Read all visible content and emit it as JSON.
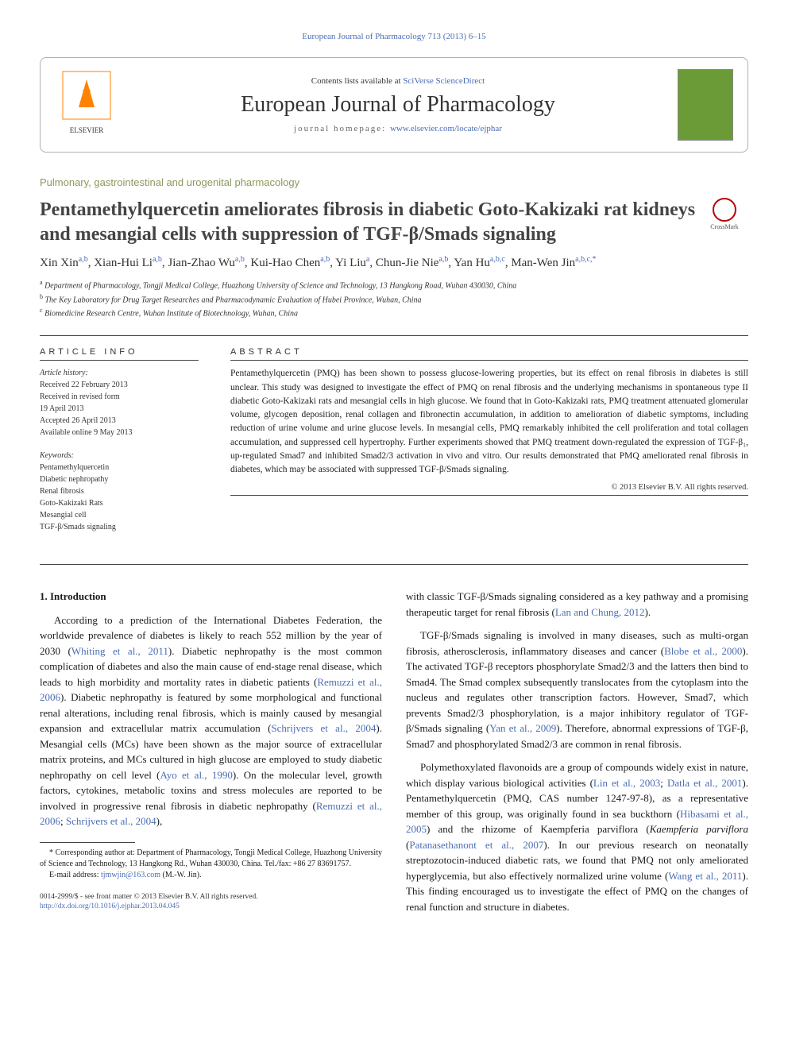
{
  "top_link": "European Journal of Pharmacology 713 (2013) 6–15",
  "header": {
    "contents_prefix": "Contents lists available at ",
    "contents_link": "SciVerse ScienceDirect",
    "journal": "European Journal of Pharmacology",
    "homepage_prefix": "journal homepage: ",
    "homepage_url": "www.elsevier.com/locate/ejphar",
    "publisher": "ELSEVIER"
  },
  "section_heading": "Pulmonary, gastrointestinal and urogenital pharmacology",
  "title": "Pentamethylquercetin ameliorates fibrosis in diabetic Goto-Kakizaki rat kidneys and mesangial cells with suppression of TGF-β/Smads signaling",
  "crossmark": "CrossMark",
  "authors_html": "Xin Xin<sup>a,b</sup>, Xian-Hui Li<sup>a,b</sup>, Jian-Zhao Wu<sup>a,b</sup>, Kui-Hao Chen<sup>a,b</sup>, Yi Liu<sup>a</sup>, Chun-Jie Nie<sup>a,b</sup>, Yan Hu<sup>a,b,c</sup>, Man-Wen Jin<sup>a,b,c,*</sup>",
  "affiliations": [
    {
      "sup": "a",
      "text": "Department of Pharmacology, Tongji Medical College, Huazhong University of Science and Technology, 13 Hangkong Road, Wuhan 430030, China"
    },
    {
      "sup": "b",
      "text": "The Key Laboratory for Drug Target Researches and Pharmacodynamic Evaluation of Hubei Province, Wuhan, China"
    },
    {
      "sup": "c",
      "text": "Biomedicine Research Centre, Wuhan Institute of Biotechnology, Wuhan, China"
    }
  ],
  "article_info": {
    "heading": "ARTICLE INFO",
    "history_label": "Article history:",
    "history": [
      "Received 22 February 2013",
      "Received in revised form",
      "19 April 2013",
      "Accepted 26 April 2013",
      "Available online 9 May 2013"
    ],
    "keywords_label": "Keywords:",
    "keywords": [
      "Pentamethylquercetin",
      "Diabetic nephropathy",
      "Renal fibrosis",
      "Goto-Kakizaki Rats",
      "Mesangial cell",
      "TGF-β/Smads signaling"
    ]
  },
  "abstract": {
    "heading": "ABSTRACT",
    "text": "Pentamethylquercetin (PMQ) has been shown to possess glucose-lowering properties, but its effect on renal fibrosis in diabetes is still unclear. This study was designed to investigate the effect of PMQ on renal fibrosis and the underlying mechanisms in spontaneous type II diabetic Goto-Kakizaki rats and mesangial cells in high glucose. We found that in Goto-Kakizaki rats, PMQ treatment attenuated glomerular volume, glycogen deposition, renal collagen and fibronectin accumulation, in addition to amelioration of diabetic symptoms, including reduction of urine volume and urine glucose levels. In mesangial cells, PMQ remarkably inhibited the cell proliferation and total collagen accumulation, and suppressed cell hypertrophy. Further experiments showed that PMQ treatment down-regulated the expression of TGF-β₁, up-regulated Smad7 and inhibited Smad2/3 activation in vivo and vitro. Our results demonstrated that PMQ ameliorated renal fibrosis in diabetes, which may be associated with suppressed TGF-β/Smads signaling.",
    "copyright": "© 2013 Elsevier B.V. All rights reserved."
  },
  "intro": {
    "heading": "1. Introduction",
    "p1_pre": "According to a prediction of the International Diabetes Federation, the worldwide prevalence of diabetes is likely to reach 552 million by the year of 2030 (",
    "p1_ref1": "Whiting et al., 2011",
    "p1_mid1": "). Diabetic nephropathy is the most common complication of diabetes and also the main cause of end-stage renal disease, which leads to high morbidity and mortality rates in diabetic patients (",
    "p1_ref2": "Remuzzi et al., 2006",
    "p1_mid2": "). Diabetic nephropathy is featured by some morphological and functional renal alterations, including renal fibrosis, which is mainly caused by mesangial expansion and extracellular matrix accumulation (",
    "p1_ref3": "Schrijvers et al., 2004",
    "p1_mid3": "). Mesangial cells (MCs) have been shown as the major source of extracellular matrix proteins, and MCs cultured in high glucose are employed to study diabetic nephropathy on cell level (",
    "p1_ref4": "Ayo et al., 1990",
    "p1_mid4": "). On the molecular level, growth factors, cytokines, metabolic toxins and stress molecules are reported to be involved in progressive renal fibrosis in diabetic nephropathy (",
    "p1_ref5": "Remuzzi et al., 2006",
    "p1_mid5": "; ",
    "p1_ref6": "Schrijvers et al., 2004",
    "p1_end": "),",
    "p2_pre": "with classic TGF-β/Smads signaling considered as a key pathway and a promising therapeutic target for renal fibrosis (",
    "p2_ref1": "Lan and Chung, 2012",
    "p2_end": ").",
    "p3_pre": "TGF-β/Smads signaling is involved in many diseases, such as multi-organ fibrosis, atherosclerosis, inflammatory diseases and cancer (",
    "p3_ref1": "Blobe et al., 2000",
    "p3_mid1": "). The activated TGF-β receptors phosphorylate Smad2/3 and the latters then bind to Smad4. The Smad complex subsequently translocates from the cytoplasm into the nucleus and regulates other transcription factors. However, Smad7, which prevents Smad2/3 phosphorylation, is a major inhibitory regulator of TGF-β/Smads signaling (",
    "p3_ref2": "Yan et al., 2009",
    "p3_end": "). Therefore, abnormal expressions of TGF-β, Smad7 and phosphorylated Smad2/3 are common in renal fibrosis.",
    "p4_pre": "Polymethoxylated flavonoids are a group of compounds widely exist in nature, which display various biological activities (",
    "p4_ref1": "Lin et al., 2003",
    "p4_mid1": "; ",
    "p4_ref2": "Datla et al., 2001",
    "p4_mid2": "). Pentamethylquercetin (PMQ, CAS number 1247-97-8), as a representative member of this group, was originally found in sea buckthorn (",
    "p4_ref3": "Hibasami et al., 2005",
    "p4_mid3": ") and the rhizome of Kaempferia parviflora (",
    "p4_ref4": "Patanasethanont et al., 2007",
    "p4_mid4": "). In our previous research on neonatally streptozotocin-induced diabetic rats, we found that PMQ not only ameliorated hyperglycemia, but also effectively normalized urine volume (",
    "p4_ref5": "Wang et al., 2011",
    "p4_end": "). This finding encouraged us to investigate the effect of PMQ on the changes of renal function and structure in diabetes."
  },
  "footnote": {
    "corr_label": "* Corresponding author at: Department of Pharmacology, Tongji Medical College, Huazhong University of Science and Technology, 13 Hangkong Rd., Wuhan 430030, China. Tel./fax: +86 27 83691757.",
    "email_label": "E-mail address: ",
    "email": "tjmwjin@163.com",
    "email_suffix": " (M.-W. Jin)."
  },
  "bottom": {
    "line1": "0014-2999/$ - see front matter © 2013 Elsevier B.V. All rights reserved.",
    "line2": "http://dx.doi.org/10.1016/j.ejphar.2013.04.045"
  }
}
